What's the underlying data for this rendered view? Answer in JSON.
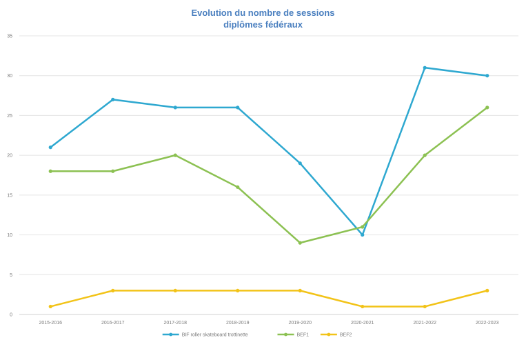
{
  "chart_data": {
    "type": "line",
    "title_lines": [
      "Evolution du nombre de sessions",
      "diplômes fédéraux"
    ],
    "xlabel": "",
    "ylabel": "",
    "categories": [
      "2015-2016",
      "2016-2017",
      "2017-2018",
      "2018-2019",
      "2019-2020",
      "2020-2021",
      "2021-2022",
      "2022-2023"
    ],
    "ylim": [
      0,
      35
    ],
    "yticks": [
      0,
      5,
      10,
      15,
      20,
      25,
      30,
      35
    ],
    "grid": true,
    "legend_position": "bottom",
    "series": [
      {
        "name": "BIF roller skateboard trottinette",
        "color": "#2ea8d0",
        "values": [
          21,
          27,
          26,
          26,
          19,
          10,
          31,
          30
        ]
      },
      {
        "name": "BEF1",
        "color": "#8cc152",
        "values": [
          18,
          18,
          20,
          16,
          9,
          11,
          20,
          26
        ]
      },
      {
        "name": "BEF2",
        "color": "#f2c318",
        "values": [
          1,
          3,
          3,
          3,
          3,
          1,
          1,
          3
        ]
      }
    ]
  }
}
